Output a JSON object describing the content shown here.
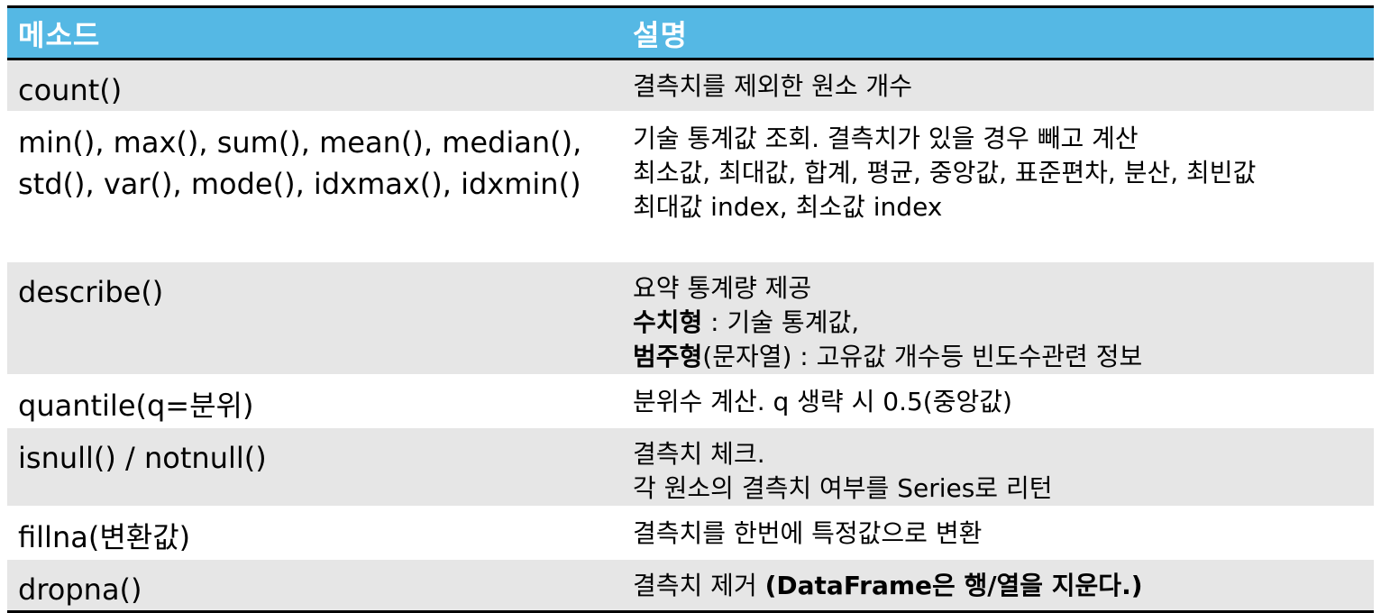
{
  "table": {
    "headers": [
      "메소드",
      "설명"
    ],
    "rows": [
      {
        "method": [
          "count()"
        ],
        "description": [
          "결측치를 제외한 원소 개수"
        ]
      },
      {
        "method": [
          "min(), max(), sum(), mean(), median(),",
          "std(), var(), mode(), idxmax(), idxmin()"
        ],
        "description": [
          "기술 통계값 조회. 결측치가 있을 경우 빼고 계산",
          "최소값, 최대값, 합계, 평균, 중앙값, 표준편차, 분산, 최빈값",
          "최대값 index, 최소값 index"
        ]
      },
      {
        "method": [
          "describe()"
        ],
        "description": [
          "요약 통계량 제공"
        ],
        "numeric_bold": "수치형",
        "numeric_rest": " : 기술 통계값,",
        "categorical_bold": "범주형",
        "categorical_rest": "(문자열) : 고유값 개수등 빈도수관련 정보"
      },
      {
        "method": [
          "quantile(q=분위)"
        ],
        "description": [
          "분위수 계산. q 생략 시 0.5(중앙값)"
        ]
      },
      {
        "method": [
          "isnull() / notnull()"
        ],
        "description": [
          "결측치 체크.",
          "각 원소의 결측치 여부를 Series로 리턴"
        ]
      },
      {
        "method": [
          "fillna(변환값)"
        ],
        "description": [
          "결측치를 한번에 특정값으로 변환"
        ]
      },
      {
        "method": [
          "dropna()"
        ],
        "description_plain": "결측치 제거 ",
        "description_bold": "(DataFrame은 행/열을 지운다.)"
      }
    ]
  },
  "colors": {
    "header_bg": "#55b8e4",
    "header_text": "#ffffff",
    "shaded_row": "#e6e6e6",
    "plain_row": "#ffffff",
    "rule": "#000000"
  }
}
